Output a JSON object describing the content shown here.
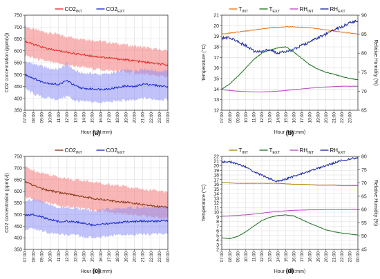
{
  "figure": {
    "panels": [
      {
        "id": "a",
        "caption": "(a)",
        "chart_data": {
          "type": "area",
          "title": "",
          "xlabel": "Hour (HH:mm)",
          "ylabel": "CO2 concentration (ppm(v))",
          "ylim": [
            350,
            750
          ],
          "yticks": [
            350,
            400,
            450,
            500,
            550,
            600,
            650,
            700,
            750
          ],
          "xticks": [
            "07:00",
            "08:00",
            "09:00",
            "10:00",
            "11:00",
            "12:00",
            "13:00",
            "14:00",
            "15:00",
            "16:00",
            "17:00",
            "18:00",
            "19:00",
            "20:00",
            "21:00",
            "22:00",
            "23:00",
            "00:00"
          ],
          "grid": true,
          "legend": {
            "placement": "top",
            "entries": [
              {
                "main": "CO2",
                "sub": "INT",
                "color": "#e8302e"
              },
              {
                "main": "CO2",
                "sub": "EXT",
                "color": "#1f2fd0"
              }
            ]
          },
          "x_hours": [
            0,
            1,
            2,
            3,
            4,
            5,
            6,
            7,
            8,
            9,
            10,
            11,
            12,
            13,
            14,
            15,
            16,
            17
          ],
          "series": [
            {
              "key": "CO2_INT",
              "color": "#e8302e",
              "band_color": "#f47a7a",
              "values": [
                640,
                627,
                616,
                606,
                600,
                594,
                588,
                583,
                578,
                574,
                570,
                566,
                562,
                558,
                553,
                549,
                544,
                539
              ],
              "band_low": [
                580,
                570,
                560,
                553,
                545,
                540,
                535,
                530,
                525,
                521,
                517,
                514,
                510,
                506,
                502,
                498,
                495,
                490
              ],
              "band_high": [
                705,
                690,
                682,
                675,
                668,
                660,
                655,
                650,
                645,
                640,
                635,
                630,
                625,
                620,
                615,
                610,
                605,
                600
              ]
            },
            {
              "key": "CO2_EXT",
              "color": "#1f2fd0",
              "band_color": "#8f8ff5",
              "values": [
                500,
                485,
                470,
                462,
                458,
                475,
                452,
                440,
                440,
                438,
                440,
                445,
                452,
                448,
                460,
                458,
                452,
                450
              ],
              "band_low": [
                440,
                420,
                405,
                400,
                395,
                410,
                390,
                385,
                385,
                383,
                385,
                388,
                392,
                390,
                400,
                398,
                395,
                395
              ],
              "band_high": [
                555,
                545,
                535,
                525,
                522,
                545,
                515,
                505,
                505,
                500,
                505,
                510,
                520,
                515,
                525,
                520,
                515,
                515
              ]
            }
          ]
        }
      },
      {
        "id": "b",
        "caption": "(b)",
        "chart_data": {
          "type": "line",
          "title": "",
          "xlabel": "Hour (HH:mm)",
          "ylabel": "Temperature (°C)",
          "y2label": "Relative Humidity (%)",
          "ylim": [
            12,
            21
          ],
          "yticks": [
            12,
            13,
            14,
            15,
            16,
            17,
            18,
            19,
            20,
            21
          ],
          "y2lim": [
            65,
            90
          ],
          "y2ticks": [
            65,
            70,
            75,
            80,
            85,
            90
          ],
          "xticks": [
            "07:00",
            "08:00",
            "09:00",
            "10:00",
            "11:00",
            "12:00",
            "13:00",
            "14:00",
            "15:00",
            "16:00",
            "17:00",
            "18:00",
            "19:00",
            "20:00",
            "21:00",
            "22:00",
            "23:00"
          ],
          "grid": true,
          "legend": {
            "placement": "top",
            "entries": [
              {
                "main": "T",
                "sub": "INT",
                "color": "#e87a20"
              },
              {
                "main": "T",
                "sub": "EXT",
                "color": "#2a7a2a"
              },
              {
                "main": "RH",
                "sub": "INT",
                "color": "#c050c8"
              },
              {
                "main": "RH",
                "sub": "EXT",
                "color": "#1f2fa8"
              }
            ]
          },
          "x_hours": [
            0,
            1,
            2,
            3,
            4,
            5,
            6,
            7,
            8,
            9,
            10,
            11,
            12,
            13,
            14,
            15,
            16,
            17
          ],
          "series": [
            {
              "key": "T_INT",
              "axis": "left",
              "color": "#e87a20",
              "values": [
                19.2,
                19.3,
                19.4,
                19.5,
                19.6,
                19.7,
                19.8,
                19.85,
                19.9,
                19.9,
                19.85,
                19.8,
                19.7,
                19.6,
                19.5,
                19.4,
                19.3,
                19.2
              ]
            },
            {
              "key": "T_EXT",
              "axis": "left",
              "color": "#2a7a2a",
              "values": [
                14.0,
                14.5,
                15.2,
                16.0,
                16.8,
                17.4,
                17.7,
                17.9,
                18.0,
                17.5,
                16.9,
                16.3,
                15.9,
                15.6,
                15.4,
                15.2,
                15.0,
                14.9
              ]
            },
            {
              "key": "RH_INT",
              "axis": "right",
              "color": "#c050c8",
              "values": [
                70.4,
                70.2,
                70.0,
                69.9,
                69.8,
                69.8,
                69.9,
                70.0,
                70.2,
                70.4,
                70.6,
                70.8,
                71.0,
                71.1,
                71.2,
                71.3,
                71.3,
                71.3
              ]
            },
            {
              "key": "RH_EXT",
              "axis": "right",
              "color": "#1f2fa8",
              "values": [
                84.0,
                84.0,
                83.0,
                82.0,
                80.5,
                80.5,
                81.0,
                80.0,
                80.5,
                81.0,
                82.0,
                83.0,
                84.0,
                85.0,
                86.0,
                87.0,
                88.0,
                88.5
              ]
            }
          ]
        }
      },
      {
        "id": "c",
        "caption": "(c)",
        "chart_data": {
          "type": "area",
          "title": "",
          "xlabel": "Hour (HH:mm)",
          "ylabel": "CO2 concentration (ppm(v))",
          "ylim": [
            350,
            750
          ],
          "yticks": [
            350,
            400,
            450,
            500,
            550,
            600,
            650,
            700,
            750
          ],
          "xticks": [
            "07:00",
            "08:00",
            "09:00",
            "10:00",
            "11:00",
            "12:00",
            "13:00",
            "14:00",
            "15:00",
            "16:00",
            "17:00",
            "18:00",
            "19:00",
            "20:00",
            "21:00",
            "22:00",
            "23:00",
            "00:00"
          ],
          "grid": true,
          "legend": {
            "placement": "top",
            "entries": [
              {
                "main": "CO2",
                "sub": "INT",
                "color": "#8a3a1a"
              },
              {
                "main": "CO2",
                "sub": "EXT",
                "color": "#1f2fd0"
              }
            ]
          },
          "x_hours": [
            0,
            1,
            2,
            3,
            4,
            5,
            6,
            7,
            8,
            9,
            10,
            11,
            12,
            13,
            14,
            15,
            16,
            17
          ],
          "series": [
            {
              "key": "CO2_INT",
              "color": "#8a3a1a",
              "band_color": "#f47a7a",
              "values": [
                640,
                625,
                612,
                602,
                595,
                588,
                582,
                576,
                570,
                565,
                560,
                556,
                552,
                548,
                543,
                538,
                534,
                530
              ],
              "band_low": [
                575,
                565,
                555,
                548,
                540,
                535,
                530,
                525,
                520,
                515,
                510,
                506,
                502,
                498,
                494,
                490,
                487,
                484
              ],
              "band_high": [
                705,
                690,
                680,
                670,
                662,
                655,
                650,
                645,
                640,
                635,
                630,
                625,
                620,
                615,
                610,
                605,
                600,
                595
              ]
            },
            {
              "key": "CO2_EXT",
              "color": "#1f2fd0",
              "band_color": "#8f8ff5",
              "values": [
                495,
                500,
                490,
                478,
                470,
                472,
                468,
                462,
                455,
                458,
                462,
                465,
                468,
                470,
                472,
                470,
                472,
                475
              ],
              "band_low": [
                435,
                440,
                430,
                420,
                412,
                415,
                410,
                405,
                400,
                403,
                408,
                410,
                412,
                414,
                416,
                414,
                416,
                420
              ],
              "band_high": [
                560,
                565,
                555,
                540,
                530,
                532,
                528,
                522,
                515,
                518,
                522,
                525,
                528,
                530,
                532,
                530,
                532,
                535
              ]
            }
          ]
        }
      },
      {
        "id": "d",
        "caption": "(d)",
        "chart_data": {
          "type": "line",
          "title": "",
          "xlabel": "Hour (HH:mm)",
          "ylabel": "Temperature (°C)",
          "y2label": "Relative Humidity (%)",
          "ylim": [
            2,
            22
          ],
          "yticks": [
            2,
            3,
            4,
            5,
            6,
            7,
            8,
            9,
            10,
            11,
            12,
            13,
            14,
            15,
            16,
            17,
            18,
            19,
            20,
            21,
            22
          ],
          "y2lim": [
            45,
            80
          ],
          "y2ticks": [
            45,
            50,
            55,
            60,
            65,
            70,
            75,
            80
          ],
          "xticks": [
            "07:00",
            "08:00",
            "09:00",
            "10:00",
            "11:00",
            "12:00",
            "13:00",
            "14:00",
            "15:00",
            "16:00",
            "17:00",
            "18:00",
            "19:00",
            "20:00",
            "21:00",
            "22:00",
            "23:00",
            "00:00"
          ],
          "grid": true,
          "legend": {
            "placement": "top",
            "entries": [
              {
                "main": "T",
                "sub": "INT",
                "color": "#b8860b"
              },
              {
                "main": "T",
                "sub": "EXT",
                "color": "#2a7a2a"
              },
              {
                "main": "RH",
                "sub": "INT",
                "color": "#c050c8"
              },
              {
                "main": "RH",
                "sub": "EXT",
                "color": "#1f2fa8"
              }
            ]
          },
          "x_hours": [
            0,
            1,
            2,
            3,
            4,
            5,
            6,
            7,
            8,
            9,
            10,
            11,
            12,
            13,
            14,
            15,
            16,
            17
          ],
          "series": [
            {
              "key": "T_INT",
              "axis": "left",
              "color": "#b8860b",
              "values": [
                16.4,
                16.3,
                16.2,
                16.2,
                16.2,
                16.2,
                16.2,
                16.2,
                16.1,
                16.0,
                16.0,
                15.9,
                15.8,
                15.8,
                15.8,
                15.7,
                15.7,
                15.7
              ]
            },
            {
              "key": "T_EXT",
              "axis": "left",
              "color": "#2a7a2a",
              "values": [
                4.5,
                4.3,
                4.8,
                5.8,
                7.0,
                8.2,
                8.9,
                9.3,
                9.4,
                9.2,
                8.4,
                7.6,
                6.9,
                6.2,
                5.8,
                5.5,
                5.3,
                5.1
              ]
            },
            {
              "key": "RH_INT",
              "axis": "right",
              "color": "#c050c8",
              "values": [
                57.5,
                57.6,
                57.8,
                58.0,
                58.3,
                58.6,
                59.0,
                59.3,
                59.5,
                59.7,
                59.8,
                59.9,
                59.9,
                60.0,
                60.0,
                60.0,
                60.0,
                60.0
              ]
            },
            {
              "key": "RH_EXT",
              "axis": "right",
              "color": "#1f2fa8",
              "values": [
                78.0,
                78.0,
                77.0,
                76.0,
                74.0,
                73.0,
                71.5,
                70.5,
                71.5,
                72.5,
                73.5,
                74.5,
                75.5,
                76.5,
                77.5,
                78.5,
                79.0,
                79.5
              ]
            }
          ]
        }
      }
    ]
  }
}
